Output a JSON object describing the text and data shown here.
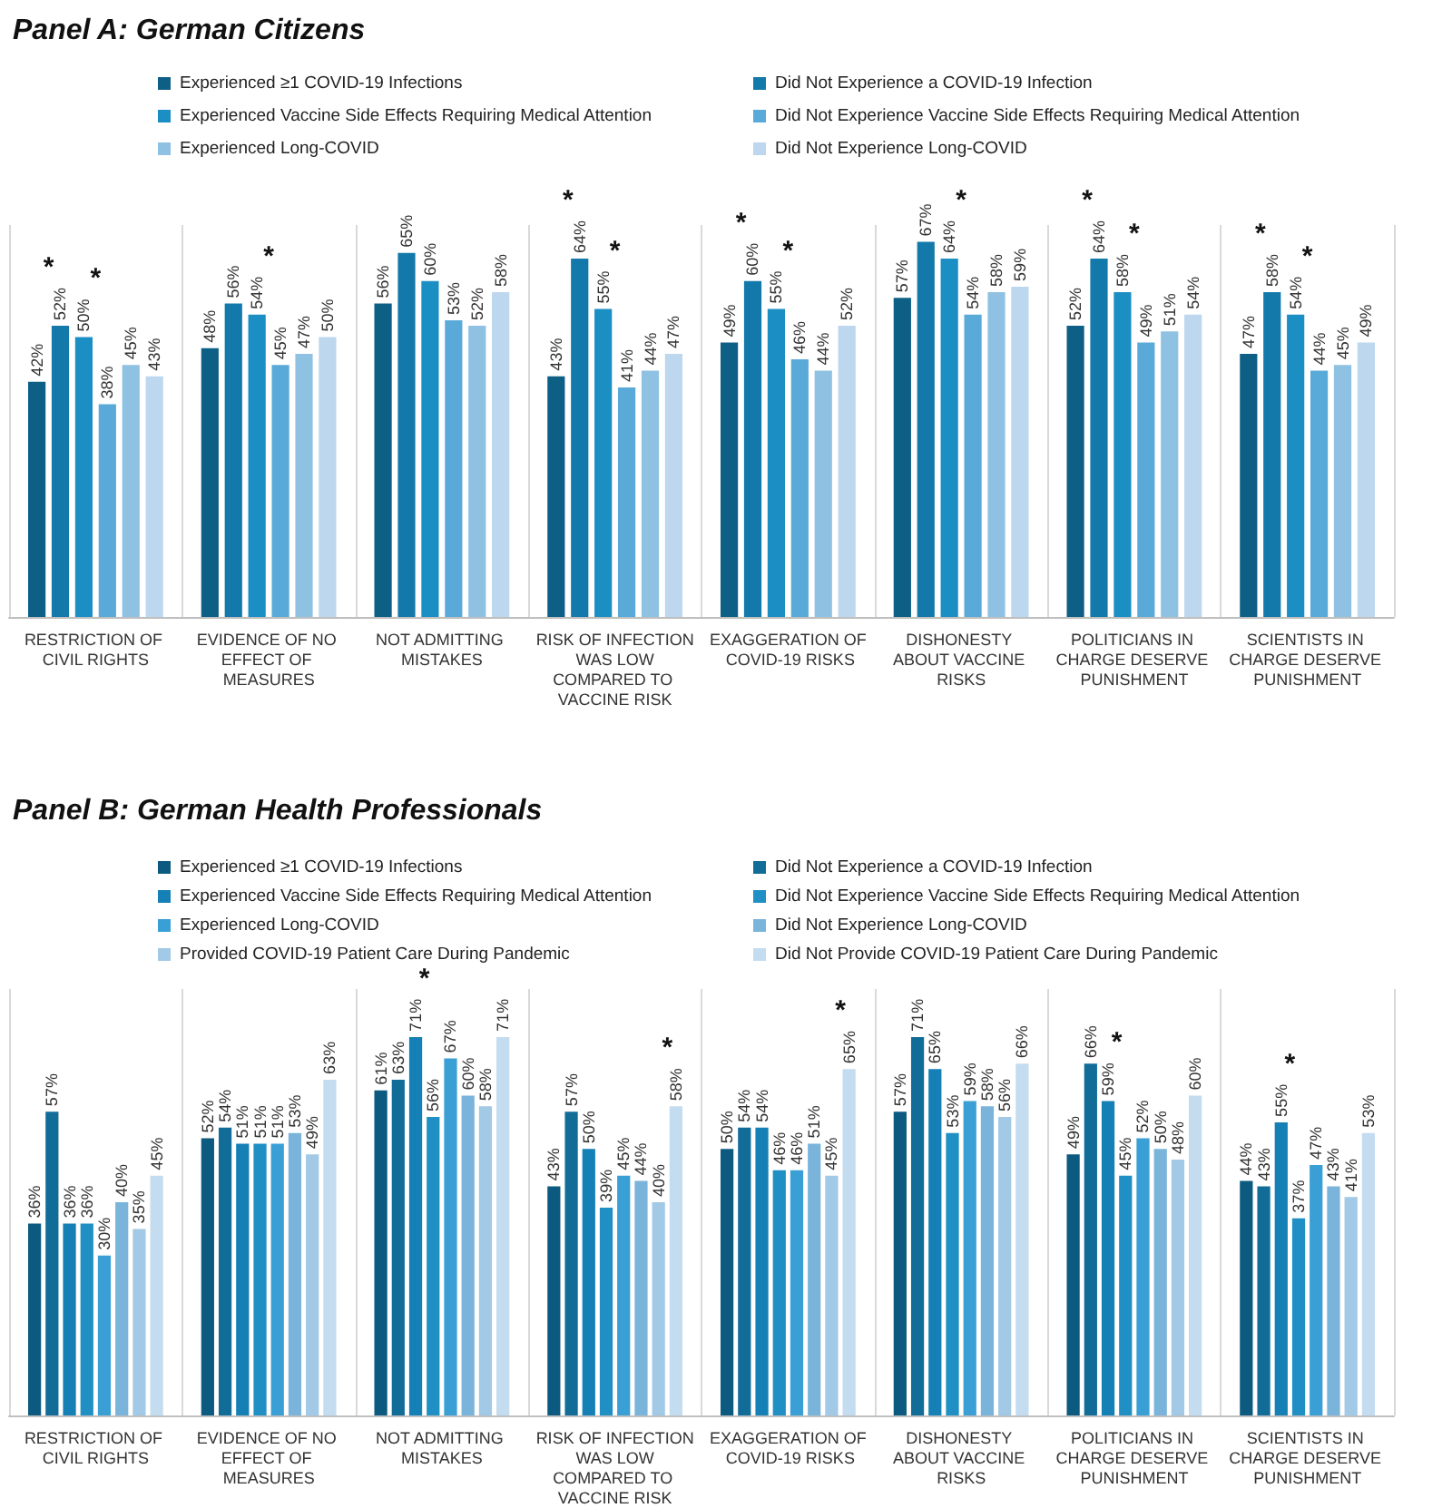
{
  "chart_data": [
    {
      "type": "bar",
      "title": "Panel A: German Citizens",
      "legend": "top",
      "grid": "x",
      "tick_labels": "x",
      "categories": [
        "RESTRICTION OF CIVIL RIGHTS",
        "EVIDENCE OF NO EFFECT OF MEASURES",
        "NOT ADMITTING MISTAKES",
        "RISK OF INFECTION WAS LOW COMPARED TO VACCINE RISK",
        "EXAGGERATION OF COVID-19 RISKS",
        "DISHONESTY ABOUT VACCINE RISKS",
        "POLITICIANS IN CHARGE DESERVE PUNISHMENT",
        "SCIENTISTS IN CHARGE DESERVE PUNISHMENT"
      ],
      "series": [
        {
          "name": "Experienced ≥1 COVID-19 Infections",
          "color": "#0e5f86",
          "values": [
            42,
            48,
            56,
            43,
            49,
            57,
            52,
            47
          ],
          "value_labels": [
            "42%",
            "48%",
            "56%",
            "43%",
            "49%",
            "57%",
            "52%",
            "47%"
          ]
        },
        {
          "name": "Did Not Experience a COVID-19 Infection",
          "color": "#1379aa",
          "values": [
            52,
            56,
            65,
            64,
            60,
            67,
            64,
            58
          ],
          "value_labels": [
            "52%",
            "56%",
            "65%",
            "64%",
            "60%",
            "67%",
            "64%",
            "58%"
          ]
        },
        {
          "name": "Experienced Vaccine Side Effects Requiring Medical Attention",
          "color": "#1b8ec4",
          "values": [
            50,
            54,
            60,
            55,
            55,
            64,
            58,
            54
          ],
          "value_labels": [
            "50%",
            "54%",
            "60%",
            "55%",
            "55%",
            "64%",
            "58%",
            "54%"
          ]
        },
        {
          "name": "Did Not Experience Vaccine Side Effects Requiring Medical Attention",
          "color": "#5aaad9",
          "values": [
            38,
            45,
            53,
            41,
            46,
            54,
            49,
            44
          ],
          "value_labels": [
            "38%",
            "45%",
            "53%",
            "41%",
            "46%",
            "54%",
            "49%",
            "44%"
          ]
        },
        {
          "name": "Experienced Long-COVID",
          "color": "#8fc1e2",
          "values": [
            45,
            47,
            52,
            44,
            44,
            58,
            51,
            45
          ],
          "value_labels": [
            "45%",
            "47%",
            "52%",
            "44%",
            "44%",
            "58%",
            "51%",
            "45%"
          ]
        },
        {
          "name": "Did Not Experience Long-COVID",
          "color": "#bcd7ee",
          "values": [
            43,
            50,
            58,
            47,
            52,
            59,
            54,
            49
          ],
          "value_labels": [
            "43%",
            "50%",
            "58%",
            "47%",
            "52%",
            "59%",
            "54%",
            "49%"
          ]
        }
      ],
      "annotations": [
        "*",
        "*",
        "*",
        "*",
        "*",
        "*",
        "*",
        "*",
        "*",
        "*",
        "*",
        "*"
      ]
    },
    {
      "type": "bar",
      "title": "Panel B: German Health Professionals",
      "legend": "top",
      "grid": "x",
      "tick_labels": "x",
      "categories": [
        "RESTRICTION OF CIVIL RIGHTS",
        "EVIDENCE OF NO EFFECT OF MEASURES",
        "NOT ADMITTING MISTAKES",
        "RISK OF INFECTION WAS LOW COMPARED TO VACCINE RISK",
        "EXAGGERATION OF COVID-19 RISKS",
        "DISHONESTY ABOUT VACCINE RISKS",
        "POLITICIANS IN CHARGE DESERVE PUNISHMENT",
        "SCIENTISTS IN CHARGE DESERVE PUNISHMENT"
      ],
      "series": [
        {
          "name": "Experienced ≥1 COVID-19 Infections",
          "color": "#0d5a80",
          "values": [
            36,
            52,
            61,
            43,
            50,
            57,
            49,
            44
          ],
          "value_labels": [
            "36%",
            "52%",
            "61%",
            "43%",
            "50%",
            "57%",
            "49%",
            "44%"
          ]
        },
        {
          "name": "Did Not Experience a COVID-19 Infection",
          "color": "#116d98",
          "values": [
            57,
            54,
            63,
            57,
            54,
            71,
            66,
            43
          ],
          "value_labels": [
            "57%",
            "54%",
            "63%",
            "57%",
            "54%",
            "71%",
            "66%",
            "43%"
          ]
        },
        {
          "name": "Experienced Vaccine Side Effects Requiring Medical Attention",
          "color": "#1580b5",
          "values": [
            36,
            51,
            71,
            50,
            54,
            65,
            59,
            55
          ],
          "value_labels": [
            "36%",
            "51%",
            "71%",
            "50%",
            "54%",
            "65%",
            "59%",
            "55%"
          ]
        },
        {
          "name": "Did Not Experience Vaccine Side Effects Requiring Medical Attention",
          "color": "#1f8fc4",
          "values": [
            36,
            51,
            56,
            39,
            46,
            53,
            45,
            37
          ],
          "value_labels": [
            "36%",
            "51%",
            "56%",
            "39%",
            "46%",
            "53%",
            "45%",
            "37%"
          ]
        },
        {
          "name": "Experienced Long-COVID",
          "color": "#3a9fd4",
          "values": [
            30,
            51,
            67,
            45,
            46,
            59,
            52,
            47
          ],
          "value_labels": [
            "30%",
            "51%",
            "67%",
            "45%",
            "46%",
            "59%",
            "52%",
            "47%"
          ]
        },
        {
          "name": "Did Not Experience Long-COVID",
          "color": "#7ab4db",
          "values": [
            40,
            53,
            60,
            44,
            51,
            58,
            50,
            43
          ],
          "value_labels": [
            "40%",
            "53%",
            "60%",
            "44%",
            "51%",
            "58%",
            "50%",
            "43%"
          ]
        },
        {
          "name": "Provided COVID-19 Patient Care During Pandemic",
          "color": "#a2c9e6",
          "values": [
            35,
            49,
            58,
            40,
            45,
            56,
            48,
            41
          ],
          "value_labels": [
            "35%",
            "49%",
            "58%",
            "40%",
            "45%",
            "56%",
            "48%",
            "41%"
          ]
        },
        {
          "name": "Did Not Provide COVID-19 Patient Care During Pandemic",
          "color": "#c4dcf0",
          "values": [
            45,
            63,
            71,
            58,
            65,
            66,
            60,
            53
          ],
          "value_labels": [
            "45%",
            "63%",
            "71%",
            "58%",
            "65%",
            "66%",
            "60%",
            "53%"
          ]
        }
      ],
      "annotations": [
        "*",
        "*",
        "*",
        "*",
        "*"
      ]
    }
  ]
}
